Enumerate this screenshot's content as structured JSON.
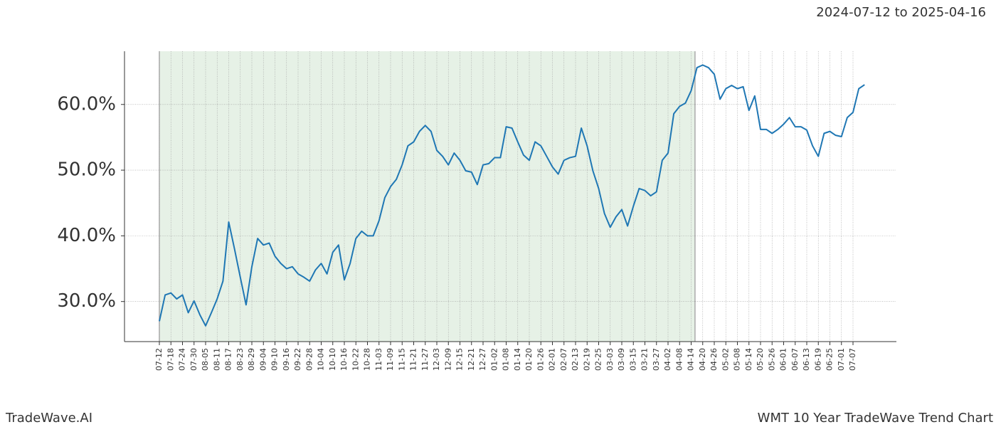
{
  "chart_data": {
    "type": "line",
    "range_text": "2024-07-12 to 2025-04-16",
    "footer_left": "TradeWave.AI",
    "footer_right": "WMT 10 Year TradeWave Trend Chart",
    "categories": [
      "07-12",
      null,
      "07-18",
      null,
      "07-24",
      null,
      "07-30",
      null,
      "08-05",
      null,
      "08-11",
      null,
      "08-17",
      null,
      "08-23",
      null,
      "08-29",
      null,
      "09-04",
      null,
      "09-10",
      null,
      "09-16",
      null,
      "09-22",
      null,
      "09-28",
      null,
      "10-04",
      null,
      "10-10",
      null,
      "10-16",
      null,
      "10-22",
      null,
      "10-28",
      null,
      "11-03",
      null,
      "11-09",
      null,
      "11-15",
      null,
      "11-21",
      null,
      "11-27",
      null,
      "12-03",
      null,
      "12-09",
      null,
      "12-15",
      null,
      "12-21",
      null,
      "12-27",
      null,
      "01-02",
      null,
      "01-08",
      null,
      "01-14",
      null,
      "01-20",
      null,
      "01-26",
      null,
      "02-01",
      null,
      "02-07",
      null,
      "02-13",
      null,
      "02-19",
      null,
      "02-25",
      null,
      "03-03",
      null,
      "03-09",
      null,
      "03-15",
      null,
      "03-21",
      null,
      "03-27",
      null,
      "04-02",
      null,
      "04-08",
      null,
      "04-14",
      null,
      "04-20",
      null,
      "04-26",
      null,
      "05-02",
      null,
      "05-08",
      null,
      "05-14",
      null,
      "05-20",
      null,
      "05-26",
      null,
      "06-01",
      null,
      "06-07",
      null,
      "06-13",
      null,
      "06-19",
      null,
      "06-25",
      null,
      "07-01",
      null,
      "07-07",
      null,
      null
    ],
    "values": [
      27.0,
      31.0,
      31.3,
      30.4,
      31.0,
      28.3,
      30.1,
      28.0,
      26.3,
      28.3,
      30.4,
      33.1,
      42.1,
      38.0,
      33.7,
      29.5,
      35.3,
      39.6,
      38.6,
      38.9,
      36.9,
      35.8,
      35.0,
      35.3,
      34.2,
      33.7,
      33.1,
      34.8,
      35.8,
      34.2,
      37.5,
      38.6,
      33.3,
      35.8,
      39.6,
      40.7,
      40.0,
      40.0,
      42.3,
      45.8,
      47.5,
      48.6,
      50.8,
      53.7,
      54.3,
      55.9,
      56.8,
      55.9,
      53.0,
      52.1,
      50.8,
      52.6,
      51.5,
      49.9,
      49.7,
      47.8,
      50.8,
      51.0,
      51.9,
      51.9,
      56.6,
      56.4,
      54.3,
      52.3,
      51.5,
      54.3,
      53.7,
      52.1,
      50.5,
      49.4,
      51.5,
      51.9,
      52.1,
      56.4,
      53.7,
      49.9,
      47.2,
      43.4,
      41.3,
      42.9,
      44.0,
      41.5,
      44.5,
      47.2,
      46.9,
      46.1,
      46.7,
      51.5,
      52.6,
      58.6,
      59.7,
      60.2,
      62.1,
      65.6,
      66.0,
      65.6,
      64.6,
      60.8,
      62.4,
      62.9,
      62.4,
      62.7,
      59.1,
      61.3,
      56.2,
      56.2,
      55.6,
      56.2,
      57.0,
      58.0,
      56.6,
      56.6,
      56.1,
      53.7,
      52.1,
      55.6,
      55.9,
      55.3,
      55.1,
      58.0,
      58.8,
      62.4,
      63.0
    ],
    "color": "#1f77b4",
    "shade_color": "#e6f1e6",
    "ylim": [
      23.9,
      68.1
    ],
    "yticks": [
      {
        "value": 30,
        "label": "30.0%"
      },
      {
        "value": 40,
        "label": "40.0%"
      },
      {
        "value": 50,
        "label": "50.0%"
      },
      {
        "value": 60,
        "label": "60.0%"
      }
    ],
    "grid": true
  }
}
